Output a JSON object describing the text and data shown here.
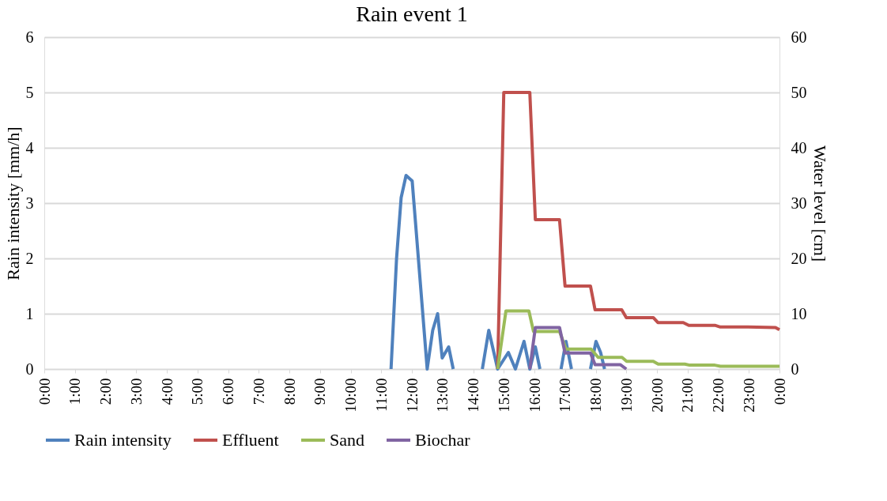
{
  "chart_data": {
    "type": "line",
    "title": "Rain event 1",
    "ylabel": "Rain intensity [mm/h]",
    "y2label": "Water level [cm]",
    "xlim": [
      0,
      24
    ],
    "xticks": [
      {
        "value": 0,
        "label": "0:00"
      },
      {
        "value": 1,
        "label": "1:00"
      },
      {
        "value": 2,
        "label": "2:00"
      },
      {
        "value": 3,
        "label": "3:00"
      },
      {
        "value": 4,
        "label": "4:00"
      },
      {
        "value": 5,
        "label": "5:00"
      },
      {
        "value": 6,
        "label": "6:00"
      },
      {
        "value": 7,
        "label": "7:00"
      },
      {
        "value": 8,
        "label": "8:00"
      },
      {
        "value": 9,
        "label": "9:00"
      },
      {
        "value": 10,
        "label": "10:00"
      },
      {
        "value": 11,
        "label": "11:00"
      },
      {
        "value": 12,
        "label": "12:00"
      },
      {
        "value": 13,
        "label": "13:00"
      },
      {
        "value": 14,
        "label": "14:00"
      },
      {
        "value": 15,
        "label": "15:00"
      },
      {
        "value": 16,
        "label": "16:00"
      },
      {
        "value": 17,
        "label": "17:00"
      },
      {
        "value": 18,
        "label": "18:00"
      },
      {
        "value": 19,
        "label": "19:00"
      },
      {
        "value": 20,
        "label": "20:00"
      },
      {
        "value": 21,
        "label": "21:00"
      },
      {
        "value": 22,
        "label": "22:00"
      },
      {
        "value": 23,
        "label": "23:00"
      },
      {
        "value": 24,
        "label": "0:00"
      }
    ],
    "ylim": [
      0,
      6
    ],
    "yticks": [
      0,
      1,
      2,
      3,
      4,
      5,
      6
    ],
    "y2lim": [
      0,
      60
    ],
    "y2ticks": [
      0,
      10,
      20,
      30,
      40,
      50,
      60
    ],
    "grid": "y",
    "legend": "bottom",
    "marker": "none",
    "line_style": "solid",
    "series": [
      {
        "name": "Rain intensity",
        "color": "#4f81bd",
        "x": [
          11.32,
          11.5,
          11.65,
          11.81,
          12.01,
          12.5,
          12.68,
          12.84,
          12.99,
          13.2,
          13.35,
          13.8,
          14.3,
          14.51,
          14.8,
          15.15,
          15.38,
          15.66,
          15.85,
          16.03,
          16.18,
          16.5,
          16.87,
          17.03,
          17.21,
          17.5,
          17.83,
          18.01,
          18.16,
          18.29
        ],
        "values": [
          0,
          2.0,
          3.1,
          3.5,
          3.4,
          0,
          0.7,
          1.0,
          0.2,
          0.4,
          0,
          null,
          0,
          0.7,
          0,
          0.3,
          0,
          0.5,
          0,
          0.4,
          0,
          null,
          0,
          0.5,
          0,
          null,
          0,
          0.5,
          0.3,
          0
        ]
      },
      {
        "name": "Effluent",
        "color": "#c0504d",
        "axis": "y2",
        "x": [
          14.8,
          15.0,
          15.85,
          16.03,
          16.82,
          17.0,
          17.83,
          17.98,
          18.85,
          19.0,
          19.88,
          20.03,
          20.86,
          21.04,
          21.89,
          22.07,
          22.97,
          23.87,
          24.0
        ],
        "values": [
          0,
          50,
          50,
          27,
          27,
          15,
          15,
          10.7,
          10.7,
          9.3,
          9.3,
          8.4,
          8.4,
          7.9,
          7.9,
          7.6,
          7.6,
          7.5,
          7.1
        ]
      },
      {
        "name": "Sand",
        "color": "#9bbb59",
        "axis": "y2",
        "x": [
          14.8,
          15.07,
          15.82,
          15.97,
          16.82,
          17.03,
          17.85,
          18.08,
          18.86,
          19.01,
          19.88,
          20.04,
          20.91,
          21.07,
          21.89,
          22.07,
          24.0
        ],
        "values": [
          0,
          10.5,
          10.5,
          6.8,
          6.8,
          3.6,
          3.6,
          2.1,
          2.1,
          1.4,
          1.4,
          0.9,
          0.9,
          0.7,
          0.7,
          0.5,
          0.5
        ]
      },
      {
        "name": "Biochar",
        "color": "#8064a2",
        "axis": "y2",
        "x": [
          15.85,
          16.03,
          16.82,
          17.0,
          17.83,
          17.98,
          18.8,
          19.0
        ],
        "values": [
          0,
          7.5,
          7.5,
          2.9,
          2.9,
          0.8,
          0.8,
          0
        ]
      }
    ]
  }
}
